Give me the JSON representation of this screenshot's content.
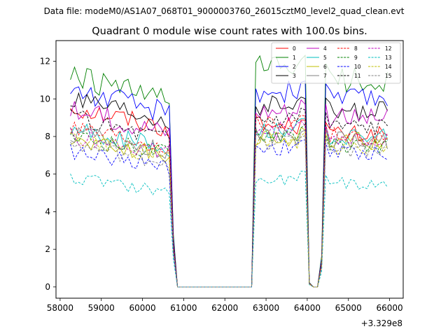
{
  "figure_suptitle": "Data file: modeM0/AS1A07_068T01_9000003760_26015cztM0_level2_quad_clean.evt",
  "chart_data": {
    "type": "line",
    "title": "Quadrant 0 module wise count rates with 100.0s bins.",
    "xlabel": "",
    "ylabel": "",
    "x_offset_label": "+3.329e8",
    "xlim": [
      57900,
      66330
    ],
    "ylim": [
      -0.6,
      13.1
    ],
    "xticks": [
      58000,
      59000,
      60000,
      61000,
      62000,
      63000,
      64000,
      65000,
      66000
    ],
    "yticks": [
      0,
      2,
      4,
      6,
      8,
      10,
      12
    ],
    "legend_position": "upper-right",
    "segments": [
      {
        "start": 58250,
        "end": 60650
      },
      {
        "start": 62750,
        "end": 63950
      },
      {
        "start": 64450,
        "end": 65950
      }
    ],
    "gap_drop": [
      {
        "from": 60650,
        "to": 61050
      },
      {
        "from": 62650,
        "to": 62750
      },
      {
        "from": 63950,
        "to": 64050
      },
      {
        "from": 64250,
        "to": 64450
      },
      {
        "from": 65950,
        "to": 66050
      }
    ],
    "series": [
      {
        "name": "0",
        "color": "#ff0000",
        "dash": "solid",
        "levels": [
          9.6,
          8.6,
          8.1
        ]
      },
      {
        "name": "1",
        "color": "#008000",
        "dash": "solid",
        "levels": [
          11.2,
          11.6,
          11.0
        ]
      },
      {
        "name": "2",
        "color": "#0000ff",
        "dash": "solid",
        "levels": [
          10.5,
          10.4,
          10.0
        ]
      },
      {
        "name": "3",
        "color": "#000000",
        "dash": "solid",
        "levels": [
          9.9,
          9.6,
          9.3
        ]
      },
      {
        "name": "4",
        "color": "#bf00bf",
        "dash": "solid",
        "levels": [
          9.4,
          9.4,
          9.0
        ]
      },
      {
        "name": "5",
        "color": "#00bfbf",
        "dash": "solid",
        "levels": [
          8.4,
          8.4,
          8.0
        ]
      },
      {
        "name": "6",
        "color": "#bfbf00",
        "dash": "solid",
        "levels": [
          7.9,
          7.9,
          7.8
        ]
      },
      {
        "name": "7",
        "color": "#808080",
        "dash": "solid",
        "levels": [
          8.2,
          8.0,
          7.8
        ]
      },
      {
        "name": "8",
        "color": "#ff0000",
        "dash": "dashed",
        "levels": [
          8.6,
          8.8,
          8.0
        ]
      },
      {
        "name": "9",
        "color": "#008000",
        "dash": "dashed",
        "levels": [
          8.0,
          8.1,
          7.5
        ]
      },
      {
        "name": "10",
        "color": "#0000ff",
        "dash": "dashed",
        "levels": [
          7.2,
          7.4,
          7.1
        ]
      },
      {
        "name": "11",
        "color": "#000000",
        "dash": "dashed",
        "levels": [
          9.0,
          9.0,
          8.6
        ]
      },
      {
        "name": "12",
        "color": "#bf00bf",
        "dash": "dashed",
        "levels": [
          8.1,
          8.3,
          7.9
        ]
      },
      {
        "name": "13",
        "color": "#00bfbf",
        "dash": "dashed",
        "levels": [
          5.8,
          5.7,
          5.5
        ]
      },
      {
        "name": "14",
        "color": "#bfbf00",
        "dash": "dashed",
        "levels": [
          7.9,
          7.8,
          7.5
        ]
      },
      {
        "name": "15",
        "color": "#808080",
        "dash": "dashed",
        "levels": [
          7.5,
          7.7,
          7.3
        ]
      }
    ]
  }
}
